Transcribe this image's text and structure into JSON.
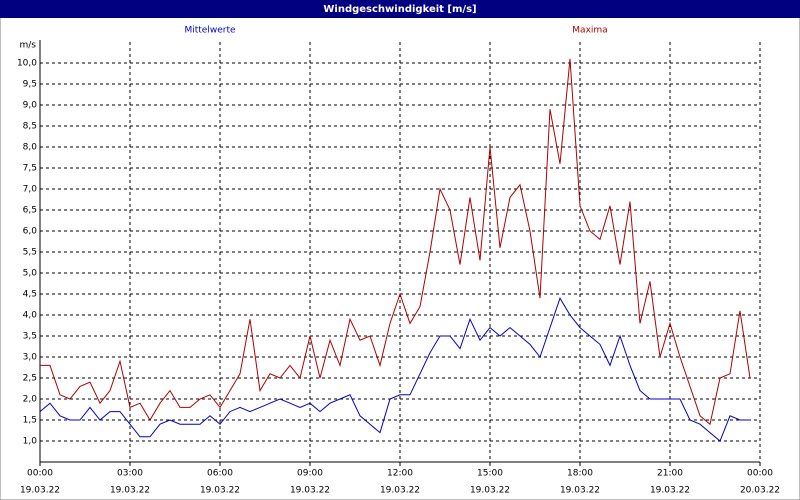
{
  "chart_data": {
    "type": "line",
    "title": "Windgeschwindigkeit [m/s]",
    "y_label": "m/s",
    "x": [
      0,
      20,
      40,
      60,
      80,
      100,
      120,
      140,
      160,
      180,
      200,
      220,
      240,
      260,
      280,
      300,
      320,
      340,
      360,
      380,
      400,
      420,
      440,
      460,
      480,
      500,
      520,
      540,
      560,
      580,
      600,
      620,
      640,
      660,
      680,
      700,
      720,
      740,
      760,
      780,
      800,
      820,
      840,
      860,
      880,
      900,
      920,
      940,
      960,
      980,
      1000,
      1020,
      1040,
      1060,
      1080,
      1100,
      1120,
      1140,
      1160,
      1180,
      1200,
      1220,
      1240,
      1260,
      1280,
      1300,
      1320,
      1340,
      1360,
      1380,
      1400,
      1420
    ],
    "xlim": [
      0,
      1440
    ],
    "xticks": [
      {
        "value": 0,
        "label": "00:00"
      },
      {
        "value": 180,
        "label": "03:00"
      },
      {
        "value": 360,
        "label": "06:00"
      },
      {
        "value": 540,
        "label": "09:00"
      },
      {
        "value": 720,
        "label": "12:00"
      },
      {
        "value": 900,
        "label": "15:00"
      },
      {
        "value": 1080,
        "label": "18:00"
      },
      {
        "value": 1260,
        "label": "21:00"
      },
      {
        "value": 1440,
        "label": "00:00"
      }
    ],
    "xtick_dates": [
      "19.03.22",
      "19.03.22",
      "19.03.22",
      "19.03.22",
      "19.03.22",
      "19.03.22",
      "19.03.22",
      "19.03.22",
      "20.03.22"
    ],
    "ylim": [
      0.5,
      10.5
    ],
    "yticks": [
      {
        "value": 1,
        "label": "1,0"
      },
      {
        "value": 1.5,
        "label": "1,5"
      },
      {
        "value": 2,
        "label": "2,0"
      },
      {
        "value": 2.5,
        "label": "2,5"
      },
      {
        "value": 3,
        "label": "3,0"
      },
      {
        "value": 3.5,
        "label": "3,5"
      },
      {
        "value": 4,
        "label": "4,0"
      },
      {
        "value": 4.5,
        "label": "4,5"
      },
      {
        "value": 5,
        "label": "5,0"
      },
      {
        "value": 5.5,
        "label": "5,5"
      },
      {
        "value": 6,
        "label": "6,0"
      },
      {
        "value": 6.5,
        "label": "6,5"
      },
      {
        "value": 7,
        "label": "7,0"
      },
      {
        "value": 7.5,
        "label": "7,5"
      },
      {
        "value": 8,
        "label": "8,0"
      },
      {
        "value": 8.5,
        "label": "8,5"
      },
      {
        "value": 9,
        "label": "9,0"
      },
      {
        "value": 9.5,
        "label": "9,5"
      },
      {
        "value": 10,
        "label": "10,0"
      }
    ],
    "grid": true,
    "series": [
      {
        "name": "Mittelwerte",
        "color": "#0000cc",
        "values": [
          1.7,
          1.9,
          1.6,
          1.5,
          1.5,
          1.8,
          1.5,
          1.7,
          1.7,
          1.4,
          1.1,
          1.1,
          1.4,
          1.5,
          1.4,
          1.4,
          1.4,
          1.6,
          1.4,
          1.7,
          1.8,
          1.7,
          1.8,
          1.9,
          2.0,
          1.9,
          1.8,
          1.9,
          1.7,
          1.9,
          2.0,
          2.1,
          1.6,
          1.4,
          1.2,
          2.0,
          2.1,
          2.1,
          2.6,
          3.1,
          3.5,
          3.5,
          3.2,
          3.9,
          3.4,
          3.7,
          3.5,
          3.7,
          3.5,
          3.3,
          3.0,
          3.7,
          4.4,
          4.0,
          3.7,
          3.5,
          3.3,
          2.8,
          3.5,
          2.8,
          2.2,
          2.0,
          2.0,
          2.0,
          2.0,
          1.5,
          1.4,
          1.2,
          1.0,
          1.6,
          1.5,
          1.5
        ]
      },
      {
        "name": "Maxima",
        "color": "#b00000",
        "values": [
          2.8,
          2.8,
          2.1,
          2.0,
          2.3,
          2.4,
          1.9,
          2.2,
          2.9,
          1.8,
          1.9,
          1.5,
          1.9,
          2.2,
          1.8,
          1.8,
          2.0,
          2.1,
          1.8,
          2.2,
          2.6,
          3.9,
          2.2,
          2.6,
          2.5,
          2.8,
          2.5,
          3.5,
          2.5,
          3.4,
          2.8,
          3.9,
          3.4,
          3.5,
          2.8,
          3.8,
          4.5,
          3.8,
          4.2,
          5.5,
          7.0,
          6.5,
          5.2,
          6.8,
          5.3,
          8.0,
          5.6,
          6.8,
          7.1,
          6.0,
          4.4,
          8.9,
          7.6,
          10.1,
          6.6,
          6.0,
          5.8,
          6.6,
          5.2,
          6.7,
          3.8,
          4.8,
          3.0,
          3.8,
          3.0,
          2.3,
          1.6,
          1.4,
          2.5,
          2.6,
          4.1,
          2.5
        ]
      }
    ]
  }
}
